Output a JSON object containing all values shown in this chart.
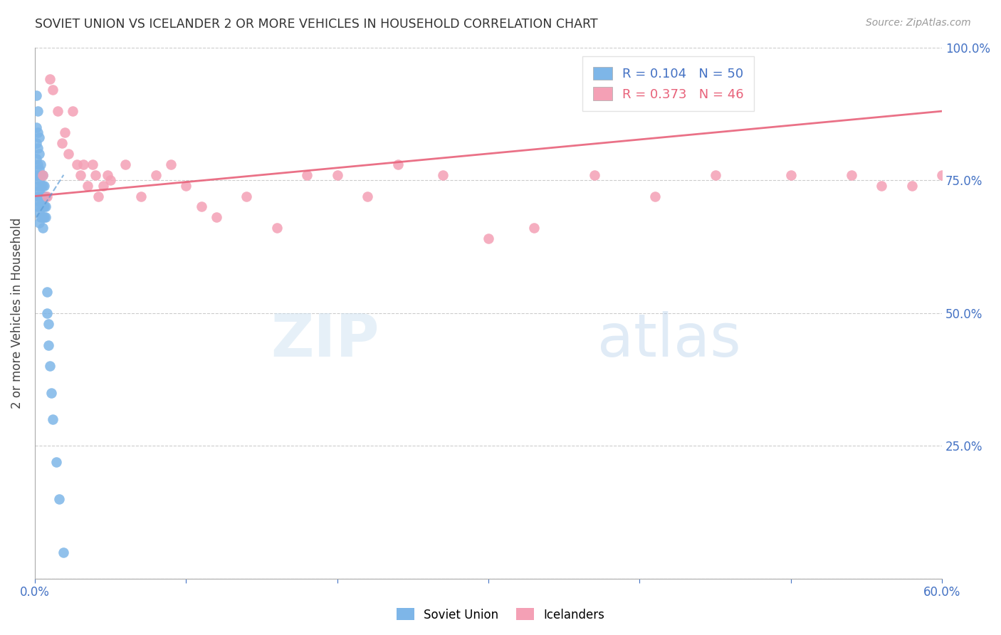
{
  "title": "SOVIET UNION VS ICELANDER 2 OR MORE VEHICLES IN HOUSEHOLD CORRELATION CHART",
  "source": "Source: ZipAtlas.com",
  "ylabel": "2 or more Vehicles in Household",
  "x_min": 0.0,
  "x_max": 0.6,
  "y_min": 0.0,
  "y_max": 1.0,
  "x_ticks": [
    0.0,
    0.1,
    0.2,
    0.3,
    0.4,
    0.5,
    0.6
  ],
  "x_tick_labels": [
    "0.0%",
    "",
    "",
    "",
    "",
    "",
    "60.0%"
  ],
  "y_ticks": [
    0.0,
    0.25,
    0.5,
    0.75,
    1.0
  ],
  "y_tick_labels_right": [
    "",
    "25.0%",
    "50.0%",
    "75.0%",
    "100.0%"
  ],
  "soviet_color": "#7eb6e8",
  "icelander_color": "#f4a0b5",
  "soviet_line_color": "#5b9bd5",
  "icelander_line_color": "#e8627a",
  "soviet_R": 0.104,
  "soviet_N": 50,
  "icelander_R": 0.373,
  "icelander_N": 46,
  "legend_label_soviet": "Soviet Union",
  "legend_label_icelander": "Icelanders",
  "background_color": "#ffffff",
  "grid_color": "#cccccc",
  "tick_label_color": "#4472c4",
  "soviet_x": [
    0.001,
    0.001,
    0.001,
    0.001,
    0.001,
    0.002,
    0.002,
    0.002,
    0.002,
    0.002,
    0.002,
    0.002,
    0.002,
    0.003,
    0.003,
    0.003,
    0.003,
    0.003,
    0.003,
    0.003,
    0.003,
    0.004,
    0.004,
    0.004,
    0.004,
    0.004,
    0.004,
    0.005,
    0.005,
    0.005,
    0.005,
    0.005,
    0.005,
    0.006,
    0.006,
    0.006,
    0.006,
    0.007,
    0.007,
    0.007,
    0.008,
    0.008,
    0.009,
    0.009,
    0.01,
    0.011,
    0.012,
    0.014,
    0.016,
    0.019
  ],
  "soviet_y": [
    0.91,
    0.85,
    0.82,
    0.79,
    0.76,
    0.88,
    0.84,
    0.81,
    0.78,
    0.76,
    0.74,
    0.72,
    0.7,
    0.83,
    0.8,
    0.77,
    0.75,
    0.73,
    0.71,
    0.69,
    0.67,
    0.78,
    0.76,
    0.74,
    0.72,
    0.7,
    0.68,
    0.76,
    0.74,
    0.72,
    0.7,
    0.68,
    0.66,
    0.74,
    0.72,
    0.7,
    0.68,
    0.72,
    0.7,
    0.68,
    0.54,
    0.5,
    0.48,
    0.44,
    0.4,
    0.35,
    0.3,
    0.22,
    0.15,
    0.05
  ],
  "icelander_x": [
    0.005,
    0.008,
    0.01,
    0.012,
    0.015,
    0.018,
    0.02,
    0.022,
    0.025,
    0.028,
    0.03,
    0.032,
    0.035,
    0.038,
    0.04,
    0.042,
    0.045,
    0.048,
    0.05,
    0.06,
    0.07,
    0.08,
    0.09,
    0.1,
    0.11,
    0.12,
    0.14,
    0.16,
    0.18,
    0.2,
    0.22,
    0.24,
    0.27,
    0.3,
    0.33,
    0.37,
    0.41,
    0.45,
    0.5,
    0.54,
    0.56,
    0.58,
    0.6,
    0.61,
    0.62,
    0.63
  ],
  "icelander_y": [
    0.76,
    0.72,
    0.94,
    0.92,
    0.88,
    0.82,
    0.84,
    0.8,
    0.88,
    0.78,
    0.76,
    0.78,
    0.74,
    0.78,
    0.76,
    0.72,
    0.74,
    0.76,
    0.75,
    0.78,
    0.72,
    0.76,
    0.78,
    0.74,
    0.7,
    0.68,
    0.72,
    0.66,
    0.76,
    0.76,
    0.72,
    0.78,
    0.76,
    0.64,
    0.66,
    0.76,
    0.72,
    0.76,
    0.76,
    0.76,
    0.74,
    0.74,
    0.76,
    0.72,
    0.72,
    0.76
  ],
  "icelander_line_x0": 0.0,
  "icelander_line_y0": 0.72,
  "icelander_line_x1": 0.6,
  "icelander_line_y1": 0.88,
  "soviet_line_x0": 0.001,
  "soviet_line_y0": 0.68,
  "soviet_line_x1": 0.019,
  "soviet_line_y1": 0.76
}
